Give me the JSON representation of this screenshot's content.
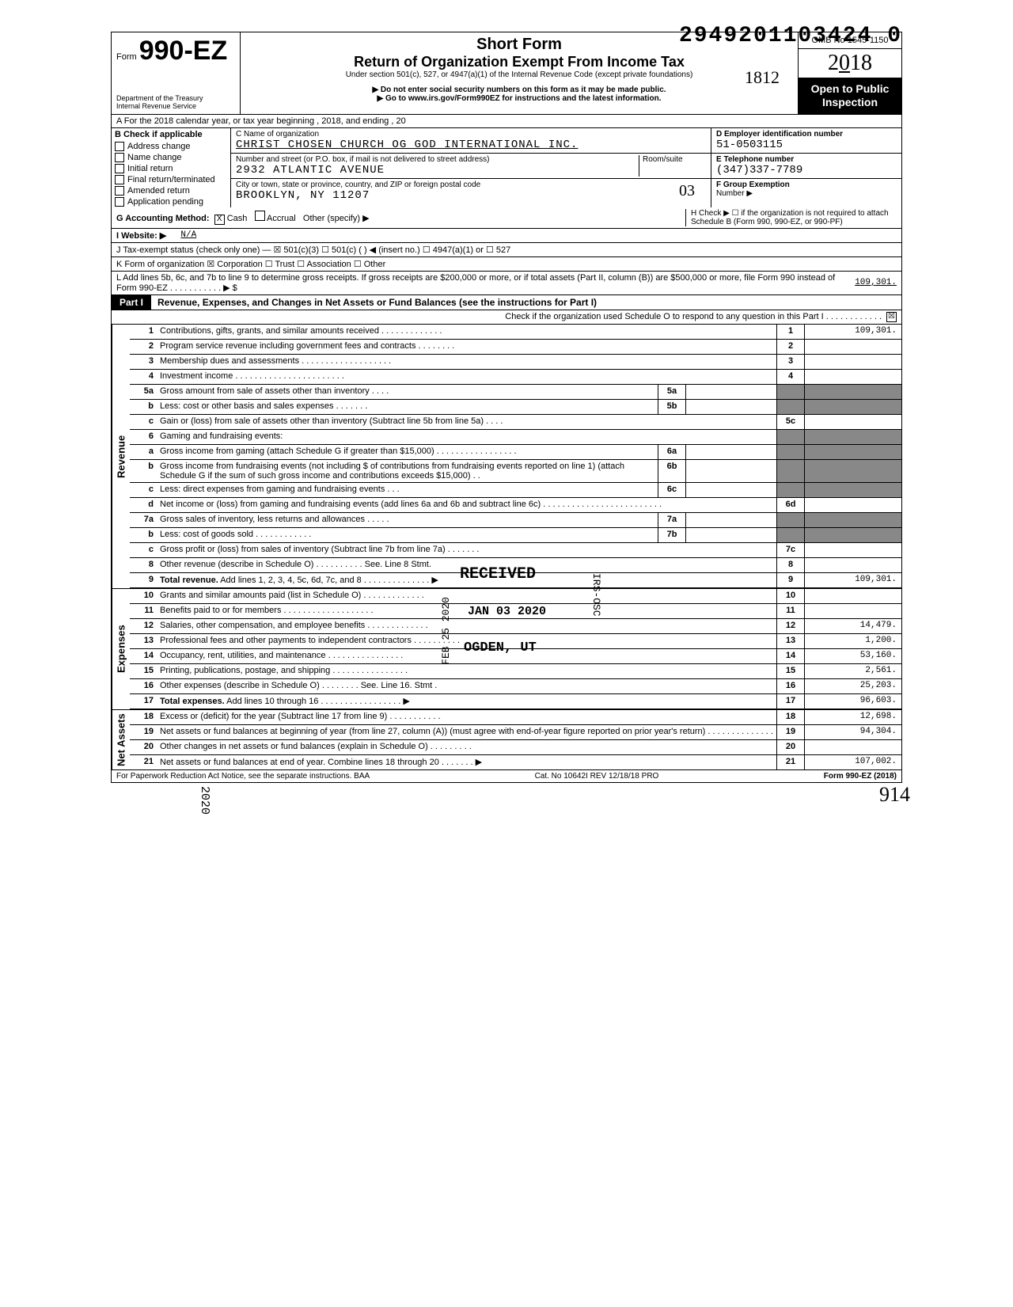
{
  "header": {
    "doc_number": "2949201103424 0",
    "form_prefix": "Form",
    "form_number": "990-EZ",
    "dept1": "Department of the Treasury",
    "dept2": "Internal Revenue Service",
    "short_form": "Short Form",
    "title": "Return of Organization Exempt From Income Tax",
    "subtitle": "Under section 501(c), 527, or 4947(a)(1) of the Internal Revenue Code (except private foundations)",
    "note1": "▶ Do not enter social security numbers on this form as it may be made public.",
    "note2": "▶ Go to www.irs.gov/Form990EZ for instructions and the latest information.",
    "hand_note": "1812",
    "omb": "OMB No 1545-1150",
    "year": "2018",
    "open": "Open to Public Inspection"
  },
  "rowA": "A  For the 2018 calendar year, or tax year beginning                                             , 2018, and ending                                    , 20",
  "colB": {
    "hdr": "B  Check if applicable",
    "items": [
      "Address change",
      "Name change",
      "Initial return",
      "Final return/terminated",
      "Amended return",
      "Application pending"
    ]
  },
  "colC": {
    "name_lbl": "C  Name of organization",
    "name_val": "CHRIST CHOSEN CHURCH OG GOD INTERNATIONAL INC.",
    "addr_lbl": "Number and street (or P.O. box, if mail is not delivered to street address)",
    "room_lbl": "Room/suite",
    "addr_val": "2932 ATLANTIC AVENUE",
    "city_lbl": "City or town, state or province, country, and ZIP or foreign postal code",
    "city_val": "BROOKLYN, NY 11207",
    "room_hand": "03"
  },
  "colD": {
    "ein_lbl": "D Employer identification number",
    "ein_val": "51-0503115",
    "tel_lbl": "E Telephone number",
    "tel_val": "(347)337-7789",
    "grp_lbl": "F Group Exemption",
    "grp_val": "Number ▶"
  },
  "rowG": {
    "g": "G  Accounting Method:",
    "cash": "Cash",
    "accrual": "Accrual",
    "other": "Other (specify) ▶",
    "h": "H  Check ▶ ☐ if the organization is not required to attach Schedule B (Form 990, 990-EZ, or 990-PF)"
  },
  "rowI": {
    "i": "I   Website: ▶",
    "val": "N/A"
  },
  "rowJ": "J  Tax-exempt status (check only one) —  ☒ 501(c)(3)   ☐ 501(c) (        ) ◀ (insert no.)  ☐ 4947(a)(1) or   ☐ 527",
  "rowK": "K  Form of organization     ☒ Corporation    ☐ Trust           ☐ Association       ☐ Other",
  "rowL": {
    "text": "L  Add lines 5b, 6c, and 7b to line 9 to determine gross receipts. If gross receipts are $200,000 or more, or if total assets (Part II, column (B)) are $500,000 or more, file Form 990 instead of Form 990-EZ .   .   .   .   .   .   .   .   .   .   .   ▶  $",
    "val": "109,301."
  },
  "part1": {
    "tag": "Part I",
    "title": "Revenue, Expenses, and Changes in Net Assets or Fund Balances (see the instructions for Part I)",
    "schedo": "Check if the organization used Schedule O to respond to any question in this Part I .  .  .  .  .  .  .  .  .  .  .  .",
    "schedo_chk": "☒"
  },
  "sections": {
    "revenue": "Revenue",
    "expenses": "Expenses",
    "netassets": "Net Assets"
  },
  "lines": [
    {
      "n": "1",
      "d": "Contributions, gifts, grants, and similar amounts received .   .   .   .   .   .   .   .   .   .   .   .   .",
      "rn": "1",
      "rv": "109,301."
    },
    {
      "n": "2",
      "d": "Program service revenue including government fees and contracts    .   .   .   .   .   .   .   .",
      "rn": "2",
      "rv": ""
    },
    {
      "n": "3",
      "d": "Membership dues and assessments .   .   .   .   .   .   .   .   .   .   .   .   .   .   .   .   .   .   .",
      "rn": "3",
      "rv": ""
    },
    {
      "n": "4",
      "d": "Investment income    .   .   .   .   .   .   .   .   .   .   .   .   .   .   .   .   .   .   .   .   .   .   .",
      "rn": "4",
      "rv": ""
    },
    {
      "n": "5a",
      "d": "Gross amount from sale of assets other than inventory    .   .   .   .",
      "mn": "5a",
      "mv": "",
      "shaded": true
    },
    {
      "n": "b",
      "d": "Less: cost or other basis and sales expenses .   .   .   .   .   .   .",
      "mn": "5b",
      "mv": "",
      "shaded": true
    },
    {
      "n": "c",
      "d": "Gain or (loss) from sale of assets other than inventory (Subtract line 5b from line 5a) .   .   .   .",
      "rn": "5c",
      "rv": ""
    },
    {
      "n": "6",
      "d": "Gaming and fundraising events:",
      "shaded": true,
      "noboxes": true
    },
    {
      "n": "a",
      "d": "Gross income from gaming (attach Schedule G if greater than $15,000) .   .   .   .   .   .   .   .   .   .   .   .   .   .   .   .   .",
      "mn": "6a",
      "mv": "",
      "shaded": true
    },
    {
      "n": "b",
      "d": "Gross income from fundraising events (not including  $                    of contributions from fundraising events reported on line 1) (attach Schedule G if the sum of such gross income and contributions exceeds $15,000) .   .",
      "mn": "6b",
      "mv": "",
      "shaded": true
    },
    {
      "n": "c",
      "d": "Less: direct expenses from gaming and fundraising events   .   .   .",
      "mn": "6c",
      "mv": "",
      "shaded": true
    },
    {
      "n": "d",
      "d": "Net income or (loss) from gaming and fundraising events (add lines 6a and 6b and subtract line 6c)    .   .   .   .   .   .   .   .   .   .   .   .   .   .   .   .   .   .   .   .   .   .   .   .   .",
      "rn": "6d",
      "rv": ""
    },
    {
      "n": "7a",
      "d": "Gross sales of inventory, less returns and allowances  .   .   .   .   .",
      "mn": "7a",
      "mv": "",
      "shaded": true
    },
    {
      "n": "b",
      "d": "Less: cost of goods sold       .   .   .   .   .   .   .   .   .   .   .   .",
      "mn": "7b",
      "mv": "",
      "shaded": true
    },
    {
      "n": "c",
      "d": "Gross profit or (loss) from sales of inventory (Subtract line 7b from line 7a)  .   .   .   .   .   .   .",
      "rn": "7c",
      "rv": ""
    },
    {
      "n": "8",
      "d": "Other revenue (describe in Schedule O) .   .   .   .   .   .   .   .   .   . See. Line 8 Stmt.",
      "rn": "8",
      "rv": ""
    },
    {
      "n": "9",
      "d": "<b>Total revenue.</b> Add lines 1, 2, 3, 4, 5c, 6d, 7c, and 8   .   .   .   .   .   .   .   .   .   .   .   .   .   . ▶",
      "rn": "9",
      "rv": "109,301."
    }
  ],
  "exp_lines": [
    {
      "n": "10",
      "d": "Grants and similar amounts paid (list in Schedule O)   .   .   .   .   .   .   .   .   .   .   .   .   .",
      "rn": "10",
      "rv": ""
    },
    {
      "n": "11",
      "d": "Benefits paid to or for members   .   .   .   .   .   .   .   .   .   .   .   .   .   .   .   .   .   .   .",
      "rn": "11",
      "rv": ""
    },
    {
      "n": "12",
      "d": "Salaries, other compensation, and employee benefits  .   .   .   .   .   .   .   .   .   .   .   .   .",
      "rn": "12",
      "rv": "14,479."
    },
    {
      "n": "13",
      "d": "Professional fees and other payments to independent contractors .   .   .   .   .   .   .   .   .   .",
      "rn": "13",
      "rv": "1,200."
    },
    {
      "n": "14",
      "d": "Occupancy, rent, utilities, and maintenance    .   .   .   .   .   .   .   .   .   .   .   .   .   .   .   .",
      "rn": "14",
      "rv": "53,160."
    },
    {
      "n": "15",
      "d": "Printing, publications, postage, and shipping .   .   .   .   .   .   .   .   .   .   .   .   .   .   .   .",
      "rn": "15",
      "rv": "2,561."
    },
    {
      "n": "16",
      "d": "Other expenses (describe in Schedule O)  .   .   .   .   .   .   .   . See. Line 16. Stmt .",
      "rn": "16",
      "rv": "25,203."
    },
    {
      "n": "17",
      "d": "<b>Total expenses.</b> Add lines 10 through 16  .   .   .   .   .   .   .   .   .   .   .   .   .   .   .   .   . ▶",
      "rn": "17",
      "rv": "96,603."
    }
  ],
  "net_lines": [
    {
      "n": "18",
      "d": "Excess or (deficit) for the year (Subtract line 17 from line 9)   .   .   .   .   .   .   .   .   .   .   .",
      "rn": "18",
      "rv": "12,698."
    },
    {
      "n": "19",
      "d": "Net assets or fund balances at beginning of year (from line 27, column (A)) (must agree with end-of-year figure reported on prior year's return)    .   .   .   .   .   .   .   .   .   .   .   .   .   .",
      "rn": "19",
      "rv": "94,304."
    },
    {
      "n": "20",
      "d": "Other changes in net assets or fund balances (explain in Schedule O) .   .   .   .   .   .   .   .   .",
      "rn": "20",
      "rv": ""
    },
    {
      "n": "21",
      "d": "Net assets or fund balances at end of year. Combine lines 18 through 20   .   .   .   .   .   .   . ▶",
      "rn": "21",
      "rv": "107,002."
    }
  ],
  "stamp": {
    "received": "RECEIVED",
    "date": "JAN 03 2020",
    "loc": "OGDEN, UT",
    "irsosc": "IRS-OSC",
    "feb": "FEB 25 2020"
  },
  "footer": {
    "left": "For Paperwork Reduction Act Notice, see the separate instructions. BAA",
    "mid": "Cat. No 10642I  REV 12/18/18 PRO",
    "right": "Form 990-EZ (2018)",
    "hand": "914"
  }
}
